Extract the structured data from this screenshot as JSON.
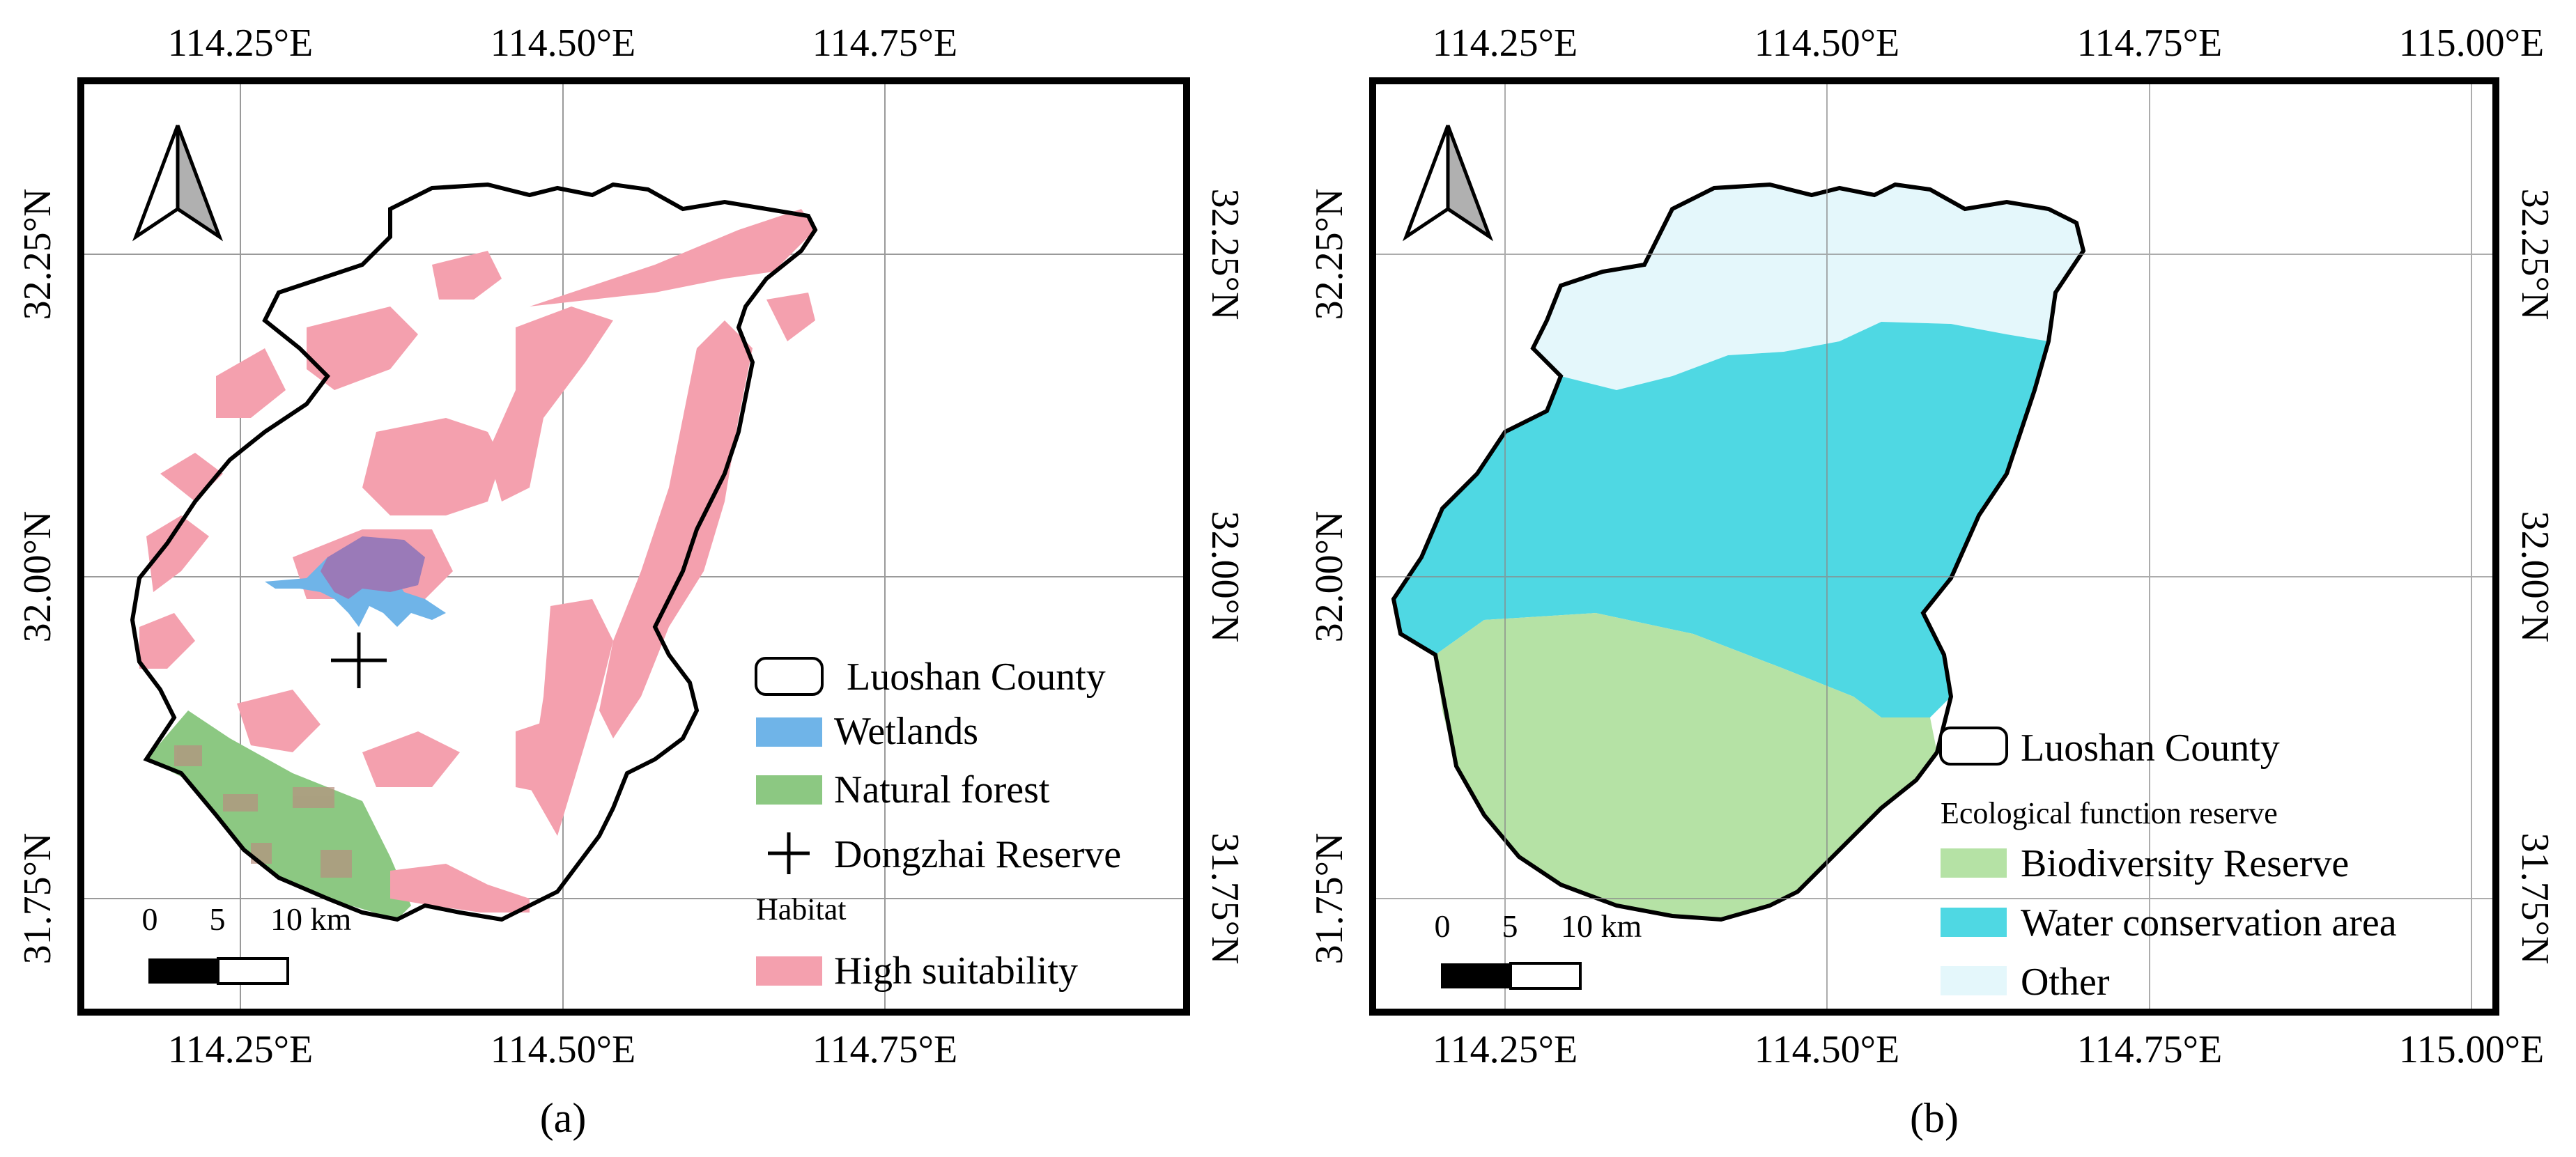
{
  "panel_a": {
    "caption": "(a)",
    "top_ticks": [
      "114.25°E",
      "114.50°E",
      "114.75°E"
    ],
    "bottom_ticks": [
      "114.25°E",
      "114.50°E",
      "114.75°E"
    ],
    "left_ticks": [
      "32.25°N",
      "32.00°N",
      "31.75°N"
    ],
    "right_ticks": [
      "32.25°N",
      "32.00°N",
      "31.75°N"
    ],
    "legend": {
      "county": "Luoshan County",
      "wetlands": "Wetlands",
      "forest": "Natural forest",
      "reserve": "Dongzhai Reserve",
      "habitat_title": "Habitat",
      "high_suitability": "High suitability"
    },
    "scale": {
      "zero": "0",
      "five": "5",
      "ten": "10 km"
    }
  },
  "panel_b": {
    "caption": "(b)",
    "top_ticks": [
      "114.25°E",
      "114.50°E",
      "114.75°E",
      "115.00°E"
    ],
    "bottom_ticks": [
      "114.25°E",
      "114.50°E",
      "114.75°E",
      "115.00°E"
    ],
    "left_ticks": [
      "32.25°N",
      "32.00°N",
      "31.75°N"
    ],
    "right_ticks": [
      "32.25°N",
      "32.00°N",
      "31.75°N"
    ],
    "legend": {
      "county": "Luoshan County",
      "title": "Ecological function reserve",
      "biodiversity": "Biodiversity Reserve",
      "water": "Water conservation area",
      "other": "Other"
    },
    "scale": {
      "zero": "0",
      "five": "5",
      "ten": "10 km"
    }
  },
  "colors": {
    "habitat": "#f4a0ae",
    "wetlands": "#6fb4e8",
    "forest": "#8cc882",
    "biodiversity": "#b5e2a5",
    "water": "#4fd8e3",
    "other": "#e4f7fb",
    "frame": "#000000"
  }
}
